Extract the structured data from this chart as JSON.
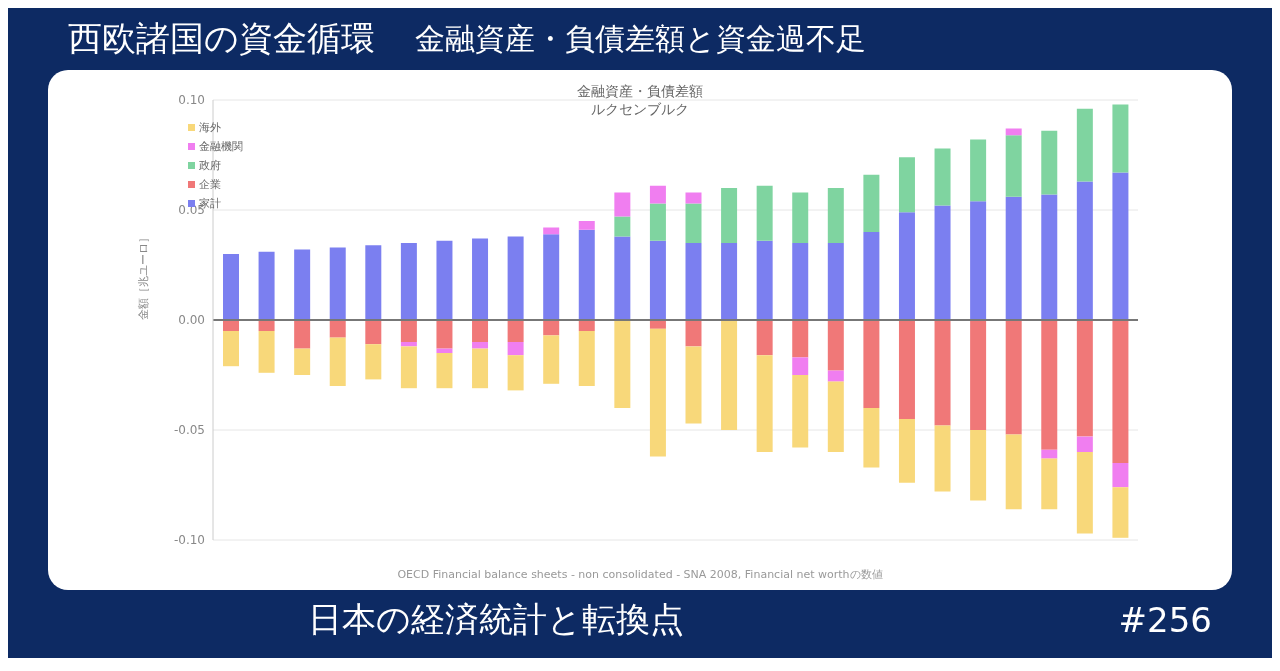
{
  "chart_data": {
    "type": "bar",
    "stacked": true,
    "title": "金融資産・負債差額",
    "subtitle": "ルクセンブルク",
    "ylabel": "金額［兆ユーロ］",
    "annotations": [
      "OECD Financial balance sheets - non consolidated - SNA 2008, Financial net worthの数値",
      "西欧諸国の資金循環",
      "金融資産・負債差額と資金過不足",
      "日本の経済統計と転換点",
      "#256"
    ],
    "categories": [
      null,
      null,
      null,
      null,
      null,
      null,
      null,
      null,
      null,
      null,
      null,
      null,
      null,
      null,
      null,
      null,
      null,
      null,
      null,
      null,
      null,
      null,
      null,
      null,
      null,
      null
    ],
    "series": [
      {
        "name": "家計",
        "color": "#7b7ff0",
        "values": [
          0.03,
          0.031,
          0.032,
          0.033,
          0.034,
          0.035,
          0.036,
          0.037,
          0.038,
          0.039,
          0.041,
          0.038,
          0.036,
          0.035,
          0.035,
          0.036,
          0.035,
          0.035,
          0.04,
          0.049,
          0.052,
          0.054,
          0.056,
          0.057,
          0.063,
          0.067
        ]
      },
      {
        "name": "企業",
        "color": "#f07878",
        "values": [
          -0.005,
          -0.005,
          -0.013,
          -0.008,
          -0.011,
          -0.01,
          -0.013,
          -0.01,
          -0.01,
          -0.007,
          -0.005,
          0,
          -0.004,
          -0.012,
          0,
          -0.016,
          -0.017,
          -0.023,
          -0.04,
          -0.045,
          -0.048,
          -0.05,
          -0.052,
          -0.059,
          -0.053,
          -0.065
        ]
      },
      {
        "name": "政府",
        "color": "#7fd4a0",
        "values": [
          0,
          0,
          0,
          0,
          0,
          0,
          0,
          0,
          0,
          0,
          0,
          0.009,
          0.017,
          0.018,
          0.025,
          0.025,
          0.023,
          0.025,
          0.026,
          0.025,
          0.026,
          0.028,
          0.028,
          0.029,
          0.033,
          0.031
        ]
      },
      {
        "name": "金融機関",
        "color": "#f07ef0",
        "values": [
          0,
          0,
          0,
          0,
          0,
          -0.002,
          -0.002,
          -0.003,
          -0.006,
          0.003,
          0.004,
          0.011,
          0.008,
          0.005,
          0,
          0,
          -0.008,
          -0.005,
          0,
          0,
          0,
          0,
          0.003,
          -0.004,
          -0.007,
          -0.011
        ]
      },
      {
        "name": "海外",
        "color": "#f8d87a",
        "values": [
          -0.016,
          -0.019,
          -0.012,
          -0.022,
          -0.016,
          -0.019,
          -0.016,
          -0.018,
          -0.016,
          -0.022,
          -0.025,
          -0.04,
          -0.058,
          -0.035,
          -0.05,
          -0.044,
          -0.033,
          -0.032,
          -0.027,
          -0.029,
          -0.03,
          -0.032,
          -0.034,
          -0.023,
          -0.037,
          -0.023
        ]
      }
    ],
    "ylim": [
      -0.1,
      0.1
    ],
    "yticks": [
      {
        "value": -0.1,
        "label": "-0.10"
      },
      {
        "value": -0.05,
        "label": "-0.05"
      },
      {
        "value": 0,
        "label": "0.00"
      },
      {
        "value": 0.05,
        "label": "0.05"
      },
      {
        "value": 0.1,
        "label": "0.10"
      }
    ],
    "ref_lines": [
      {
        "axis": "y",
        "value": 0,
        "color": "#777777"
      }
    ],
    "grid": "y",
    "legend": "top left",
    "tick_labels": "y"
  }
}
